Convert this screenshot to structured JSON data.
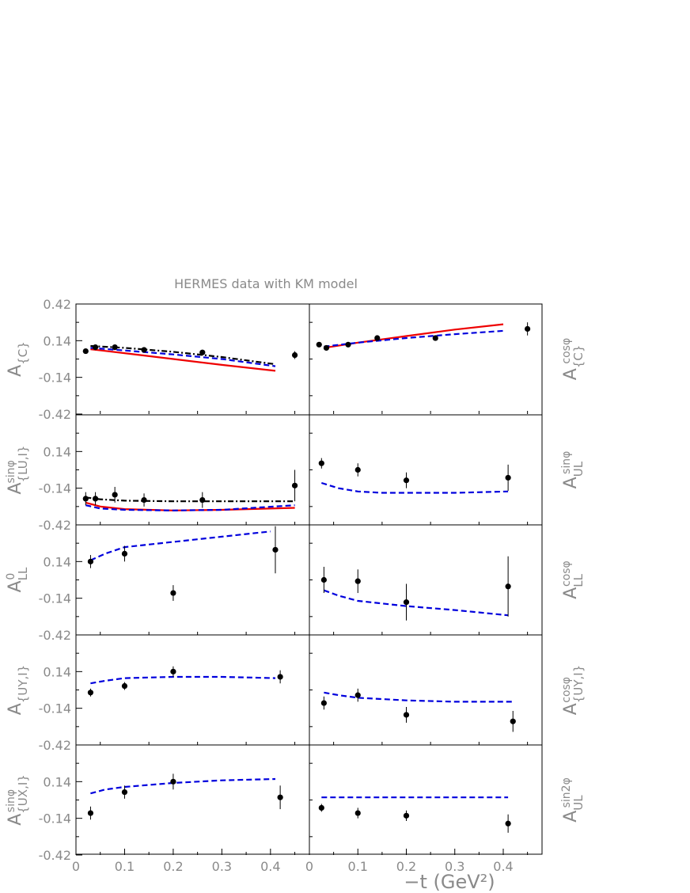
{
  "title": "HERMES data with KM model",
  "xlabel": "−t (GeV²)",
  "colors": {
    "data": "#000000",
    "model_red": "#ee0000",
    "model_blue": "#0000dd",
    "model_black": "#000000",
    "axes": "#000000",
    "text": "#8a8a8a"
  },
  "chart_data": [
    {
      "type": "scatter",
      "panel": "row1-left",
      "ylabel_main": "A",
      "ylabel_sub": "{C}",
      "ylabel_sup": "",
      "ylabel_side": "left",
      "xlim": [
        0,
        0.48
      ],
      "ylim": [
        -0.42,
        0.42
      ],
      "xticks": [],
      "yticks": [
        0.42,
        0.14,
        -0.14,
        -0.42
      ],
      "points": [
        {
          "x": 0.02,
          "y": 0.06,
          "err": 0.015
        },
        {
          "x": 0.04,
          "y": 0.09,
          "err": 0.015
        },
        {
          "x": 0.08,
          "y": 0.09,
          "err": 0.015
        },
        {
          "x": 0.14,
          "y": 0.07,
          "err": 0.015
        },
        {
          "x": 0.26,
          "y": 0.05,
          "err": 0.02
        },
        {
          "x": 0.45,
          "y": 0.03,
          "err": 0.03
        }
      ],
      "curves": [
        {
          "style": "solid",
          "color": "#ee0000",
          "x": [
            0.03,
            0.1,
            0.2,
            0.3,
            0.41
          ],
          "y": [
            0.075,
            0.045,
            0.0,
            -0.045,
            -0.09
          ]
        },
        {
          "style": "dashed",
          "color": "#0000dd",
          "x": [
            0.03,
            0.1,
            0.2,
            0.3,
            0.41
          ],
          "y": [
            0.085,
            0.065,
            0.035,
            0.0,
            -0.055
          ]
        },
        {
          "style": "dashdot",
          "color": "#000000",
          "x": [
            0.03,
            0.1,
            0.2,
            0.3,
            0.41
          ],
          "y": [
            0.1,
            0.085,
            0.055,
            0.015,
            -0.04
          ]
        }
      ]
    },
    {
      "type": "scatter",
      "panel": "row1-right",
      "ylabel_main": "A",
      "ylabel_sub": "{C}",
      "ylabel_sup": "cosφ",
      "ylabel_side": "right",
      "xlim": [
        0,
        0.48
      ],
      "ylim": [
        -0.42,
        0.42
      ],
      "xticks": [],
      "yticks": [],
      "points": [
        {
          "x": 0.02,
          "y": 0.11,
          "err": 0.01
        },
        {
          "x": 0.035,
          "y": 0.085,
          "err": 0.015
        },
        {
          "x": 0.08,
          "y": 0.11,
          "err": 0.015
        },
        {
          "x": 0.14,
          "y": 0.16,
          "err": 0.015
        },
        {
          "x": 0.26,
          "y": 0.16,
          "err": 0.02
        },
        {
          "x": 0.45,
          "y": 0.23,
          "err": 0.05
        }
      ],
      "curves": [
        {
          "style": "solid",
          "color": "#ee0000",
          "x": [
            0.03,
            0.1,
            0.2,
            0.3,
            0.4
          ],
          "y": [
            0.085,
            0.125,
            0.175,
            0.225,
            0.265
          ]
        },
        {
          "style": "dashed",
          "color": "#0000dd",
          "x": [
            0.03,
            0.1,
            0.2,
            0.3,
            0.4
          ],
          "y": [
            0.095,
            0.125,
            0.16,
            0.19,
            0.215
          ]
        }
      ]
    },
    {
      "type": "scatter",
      "panel": "row2-left",
      "ylabel_main": "A",
      "ylabel_sub": "{LU,I}",
      "ylabel_sup": "sinφ",
      "ylabel_side": "left",
      "xlim": [
        0,
        0.48
      ],
      "ylim": [
        -0.42,
        0.42
      ],
      "xticks": [],
      "yticks": [
        0.14,
        -0.14,
        -0.42
      ],
      "points": [
        {
          "x": 0.02,
          "y": -0.22,
          "err": 0.05
        },
        {
          "x": 0.04,
          "y": -0.22,
          "err": 0.05
        },
        {
          "x": 0.08,
          "y": -0.19,
          "err": 0.06
        },
        {
          "x": 0.14,
          "y": -0.23,
          "err": 0.05
        },
        {
          "x": 0.26,
          "y": -0.23,
          "err": 0.06
        },
        {
          "x": 0.45,
          "y": -0.12,
          "err": 0.12
        }
      ],
      "curves": [
        {
          "style": "solid",
          "color": "#ee0000",
          "x": [
            0.02,
            0.05,
            0.1,
            0.2,
            0.3,
            0.45
          ],
          "y": [
            -0.25,
            -0.28,
            -0.3,
            -0.31,
            -0.305,
            -0.29
          ]
        },
        {
          "style": "dashed",
          "color": "#0000dd",
          "x": [
            0.02,
            0.05,
            0.1,
            0.2,
            0.3,
            0.45
          ],
          "y": [
            -0.27,
            -0.295,
            -0.305,
            -0.31,
            -0.305,
            -0.27
          ]
        },
        {
          "style": "dashdot",
          "color": "#000000",
          "x": [
            0.02,
            0.05,
            0.1,
            0.2,
            0.3,
            0.45
          ],
          "y": [
            -0.21,
            -0.225,
            -0.235,
            -0.24,
            -0.24,
            -0.24
          ]
        }
      ]
    },
    {
      "type": "scatter",
      "panel": "row2-right",
      "ylabel_main": "A",
      "ylabel_sub": "UL",
      "ylabel_sup": "sinφ",
      "ylabel_side": "right",
      "xlim": [
        0,
        0.48
      ],
      "ylim": [
        -0.42,
        0.42
      ],
      "xticks": [],
      "yticks": [],
      "points": [
        {
          "x": 0.025,
          "y": 0.05,
          "err": 0.04
        },
        {
          "x": 0.1,
          "y": 0.0,
          "err": 0.05
        },
        {
          "x": 0.2,
          "y": -0.08,
          "err": 0.06
        },
        {
          "x": 0.41,
          "y": -0.06,
          "err": 0.1
        }
      ],
      "curves": [
        {
          "style": "dashed",
          "color": "#0000dd",
          "x": [
            0.025,
            0.06,
            0.1,
            0.15,
            0.2,
            0.3,
            0.41
          ],
          "y": [
            -0.1,
            -0.14,
            -0.165,
            -0.175,
            -0.175,
            -0.175,
            -0.165
          ]
        }
      ]
    },
    {
      "type": "scatter",
      "panel": "row3-left",
      "ylabel_main": "A",
      "ylabel_sub": "LL",
      "ylabel_sup": "0",
      "ylabel_side": "left",
      "xlim": [
        0,
        0.48
      ],
      "ylim": [
        -0.42,
        0.42
      ],
      "xticks": [],
      "yticks": [
        0.14,
        -0.14,
        -0.42
      ],
      "points": [
        {
          "x": 0.03,
          "y": 0.14,
          "err": 0.05
        },
        {
          "x": 0.1,
          "y": 0.2,
          "err": 0.06
        },
        {
          "x": 0.2,
          "y": -0.1,
          "err": 0.06
        },
        {
          "x": 0.41,
          "y": 0.23,
          "err": 0.18
        }
      ],
      "curves": [
        {
          "style": "dashed",
          "color": "#0000dd",
          "x": [
            0.03,
            0.06,
            0.1,
            0.2,
            0.3,
            0.4
          ],
          "y": [
            0.15,
            0.2,
            0.25,
            0.29,
            0.33,
            0.37
          ]
        }
      ]
    },
    {
      "type": "scatter",
      "panel": "row3-right",
      "ylabel_main": "A",
      "ylabel_sub": "LL",
      "ylabel_sup": "cosφ",
      "ylabel_side": "right",
      "xlim": [
        0,
        0.48
      ],
      "ylim": [
        -0.42,
        0.42
      ],
      "xticks": [],
      "yticks": [],
      "points": [
        {
          "x": 0.03,
          "y": 0.0,
          "err": 0.1
        },
        {
          "x": 0.1,
          "y": -0.01,
          "err": 0.09
        },
        {
          "x": 0.2,
          "y": -0.17,
          "err": 0.14
        },
        {
          "x": 0.41,
          "y": -0.05,
          "err": 0.23
        }
      ],
      "curves": [
        {
          "style": "dashed",
          "color": "#0000dd",
          "x": [
            0.03,
            0.06,
            0.1,
            0.15,
            0.2,
            0.3,
            0.41
          ],
          "y": [
            -0.08,
            -0.12,
            -0.16,
            -0.18,
            -0.2,
            -0.23,
            -0.27
          ]
        }
      ]
    },
    {
      "type": "scatter",
      "panel": "row4-left",
      "ylabel_main": "A",
      "ylabel_sub": "{UY,I}",
      "ylabel_sup": "",
      "ylabel_side": "left",
      "xlim": [
        0,
        0.48
      ],
      "ylim": [
        -0.42,
        0.42
      ],
      "xticks": [],
      "yticks": [
        0.14,
        -0.14,
        -0.42
      ],
      "points": [
        {
          "x": 0.03,
          "y": -0.02,
          "err": 0.03
        },
        {
          "x": 0.1,
          "y": 0.03,
          "err": 0.03
        },
        {
          "x": 0.2,
          "y": 0.14,
          "err": 0.04
        },
        {
          "x": 0.42,
          "y": 0.1,
          "err": 0.05
        }
      ],
      "curves": [
        {
          "style": "dashed",
          "color": "#0000dd",
          "x": [
            0.03,
            0.06,
            0.1,
            0.2,
            0.3,
            0.41
          ],
          "y": [
            0.05,
            0.07,
            0.09,
            0.1,
            0.1,
            0.09
          ]
        }
      ]
    },
    {
      "type": "scatter",
      "panel": "row4-right",
      "ylabel_main": "A",
      "ylabel_sub": "{UY,I}",
      "ylabel_sup": "cosφ",
      "ylabel_side": "right",
      "xlim": [
        0,
        0.48
      ],
      "ylim": [
        -0.42,
        0.42
      ],
      "xticks": [],
      "yticks": [],
      "points": [
        {
          "x": 0.03,
          "y": -0.1,
          "err": 0.05
        },
        {
          "x": 0.1,
          "y": -0.04,
          "err": 0.05
        },
        {
          "x": 0.2,
          "y": -0.19,
          "err": 0.06
        },
        {
          "x": 0.42,
          "y": -0.24,
          "err": 0.08
        }
      ],
      "curves": [
        {
          "style": "dashed",
          "color": "#0000dd",
          "x": [
            0.03,
            0.06,
            0.1,
            0.2,
            0.3,
            0.42
          ],
          "y": [
            -0.02,
            -0.04,
            -0.06,
            -0.08,
            -0.09,
            -0.09
          ]
        }
      ]
    },
    {
      "type": "scatter",
      "panel": "row5-left",
      "ylabel_main": "A",
      "ylabel_sub": "{UX,I}",
      "ylabel_sup": "sinφ",
      "ylabel_side": "left",
      "xlim": [
        0,
        0.48
      ],
      "ylim": [
        -0.42,
        0.42
      ],
      "xticks": [
        0,
        0.1,
        0.2,
        0.3,
        0.4
      ],
      "yticks": [
        0.14,
        -0.14,
        -0.42
      ],
      "points": [
        {
          "x": 0.03,
          "y": -0.1,
          "err": 0.05
        },
        {
          "x": 0.1,
          "y": 0.06,
          "err": 0.05
        },
        {
          "x": 0.2,
          "y": 0.14,
          "err": 0.06
        },
        {
          "x": 0.42,
          "y": 0.02,
          "err": 0.09
        }
      ],
      "curves": [
        {
          "style": "dashed",
          "color": "#0000dd",
          "x": [
            0.03,
            0.06,
            0.1,
            0.2,
            0.3,
            0.41
          ],
          "y": [
            0.05,
            0.08,
            0.1,
            0.13,
            0.15,
            0.16
          ]
        }
      ]
    },
    {
      "type": "scatter",
      "panel": "row5-right",
      "ylabel_main": "A",
      "ylabel_sub": "UL",
      "ylabel_sup": "sin2φ",
      "ylabel_side": "right",
      "xlim": [
        0,
        0.48
      ],
      "ylim": [
        -0.42,
        0.42
      ],
      "xticks": [
        0,
        0.1,
        0.2,
        0.3,
        0.4
      ],
      "yticks": [],
      "points": [
        {
          "x": 0.025,
          "y": -0.06,
          "err": 0.03
        },
        {
          "x": 0.1,
          "y": -0.1,
          "err": 0.04
        },
        {
          "x": 0.2,
          "y": -0.12,
          "err": 0.04
        },
        {
          "x": 0.41,
          "y": -0.18,
          "err": 0.07
        }
      ],
      "curves": [
        {
          "style": "dashed",
          "color": "#0000dd",
          "x": [
            0.025,
            0.1,
            0.2,
            0.3,
            0.41
          ],
          "y": [
            0.02,
            0.02,
            0.02,
            0.02,
            0.02
          ]
        }
      ]
    }
  ]
}
